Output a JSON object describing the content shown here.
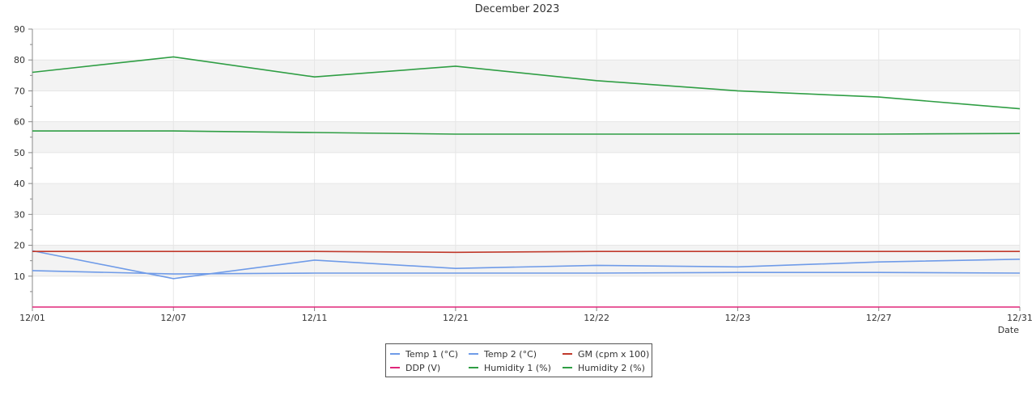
{
  "chart_data": {
    "type": "line",
    "title": "December 2023",
    "xlabel": "Date",
    "ylabel": "",
    "ylim": [
      0,
      90
    ],
    "yticks": [
      "10",
      "20",
      "30",
      "40",
      "50",
      "60",
      "70",
      "80",
      "90"
    ],
    "grid": true,
    "bands": "alternating",
    "band_color": "#f3f3f3",
    "legend_position": "bottom-center",
    "categories": [
      "12/01",
      "12/07",
      "12/11",
      "12/21",
      "12/22",
      "12/23",
      "12/27",
      "12/31"
    ],
    "series": [
      {
        "name": "Temp 1 (°C)",
        "color": "#6f9be8",
        "values": [
          11.8,
          10.7,
          11.0,
          11.0,
          11.0,
          11.2,
          11.2,
          11.0
        ]
      },
      {
        "name": "Temp 2 (°C)",
        "color": "#6f9be8",
        "values": [
          18.2,
          9.2,
          15.2,
          12.5,
          13.5,
          13.0,
          14.6,
          15.5
        ]
      },
      {
        "name": "GM (cpm x 100)",
        "color": "#c0392b",
        "values": [
          18.0,
          18.0,
          18.0,
          17.7,
          18.0,
          18.0,
          18.0,
          18.0
        ]
      },
      {
        "name": "DDP (V)",
        "color": "#e0267a",
        "values": [
          0,
          0,
          0,
          0,
          0,
          0,
          0,
          0
        ]
      },
      {
        "name": "Humidity 1 (%)",
        "color": "#2f9e44",
        "values": [
          76.0,
          81.0,
          74.5,
          78.0,
          73.3,
          70.0,
          68.0,
          64.2
        ]
      },
      {
        "name": "Humidity 2 (%)",
        "color": "#2f9e44",
        "values": [
          57.0,
          57.0,
          56.5,
          56.0,
          56.0,
          56.0,
          56.0,
          56.2
        ]
      }
    ]
  }
}
